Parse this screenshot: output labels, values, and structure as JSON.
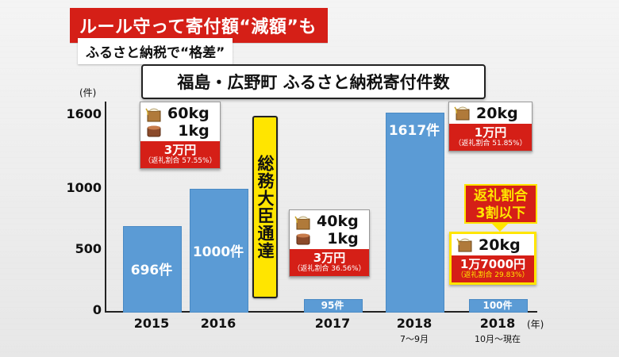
{
  "headline": "ルール守って寄付額“減額”も",
  "subheadline": "ふるさと納税で“格差”",
  "chart_title": "福島・広野町 ふるさと納税寄付件数",
  "notice_text": "総務大臣通達",
  "callout_text_1": "返礼割合",
  "callout_text_2": "3割以下",
  "colors": {
    "bar": "#5b9bd5",
    "accent": "#d51f17",
    "highlight": "#ffe500"
  },
  "chart_data": {
    "type": "bar",
    "y_unit": "(件)",
    "x_unit": "(年)",
    "ylim": [
      0,
      1700
    ],
    "y_ticks": [
      {
        "value": 0,
        "label": "0"
      },
      {
        "value": 500,
        "label": "500"
      },
      {
        "value": 1000,
        "label": "1000"
      },
      {
        "value": 1600,
        "label": "1600"
      }
    ],
    "categories": [
      {
        "label": "2015",
        "sub": ""
      },
      {
        "label": "2016",
        "sub": ""
      },
      {
        "label": "2017",
        "sub": ""
      },
      {
        "label": "2018",
        "sub": "7～9月"
      },
      {
        "label": "2018",
        "sub": "10月～現在"
      }
    ],
    "values": [
      696,
      1000,
      95,
      1617,
      100
    ],
    "value_labels": [
      "696件",
      "1000件",
      "95件",
      "1617件",
      "100件"
    ]
  },
  "gift_cards": [
    {
      "weight1": "60kg",
      "weight2": "1kg",
      "price": "3万円",
      "rate": "（返礼割合 57.55%）"
    },
    {
      "weight1": "40kg",
      "weight2": "1kg",
      "price": "3万円",
      "rate": "（返礼割合 36.56%）"
    },
    {
      "weight1": "20kg",
      "weight2": "",
      "price": "1万円",
      "rate": "（返礼割合 51.85%）"
    },
    {
      "weight1": "20kg",
      "weight2": "",
      "price": "1万7000円",
      "rate": "（返礼割合 29.83%）"
    }
  ],
  "icons": [
    "rice-bag-icon",
    "miso-tub-icon"
  ]
}
